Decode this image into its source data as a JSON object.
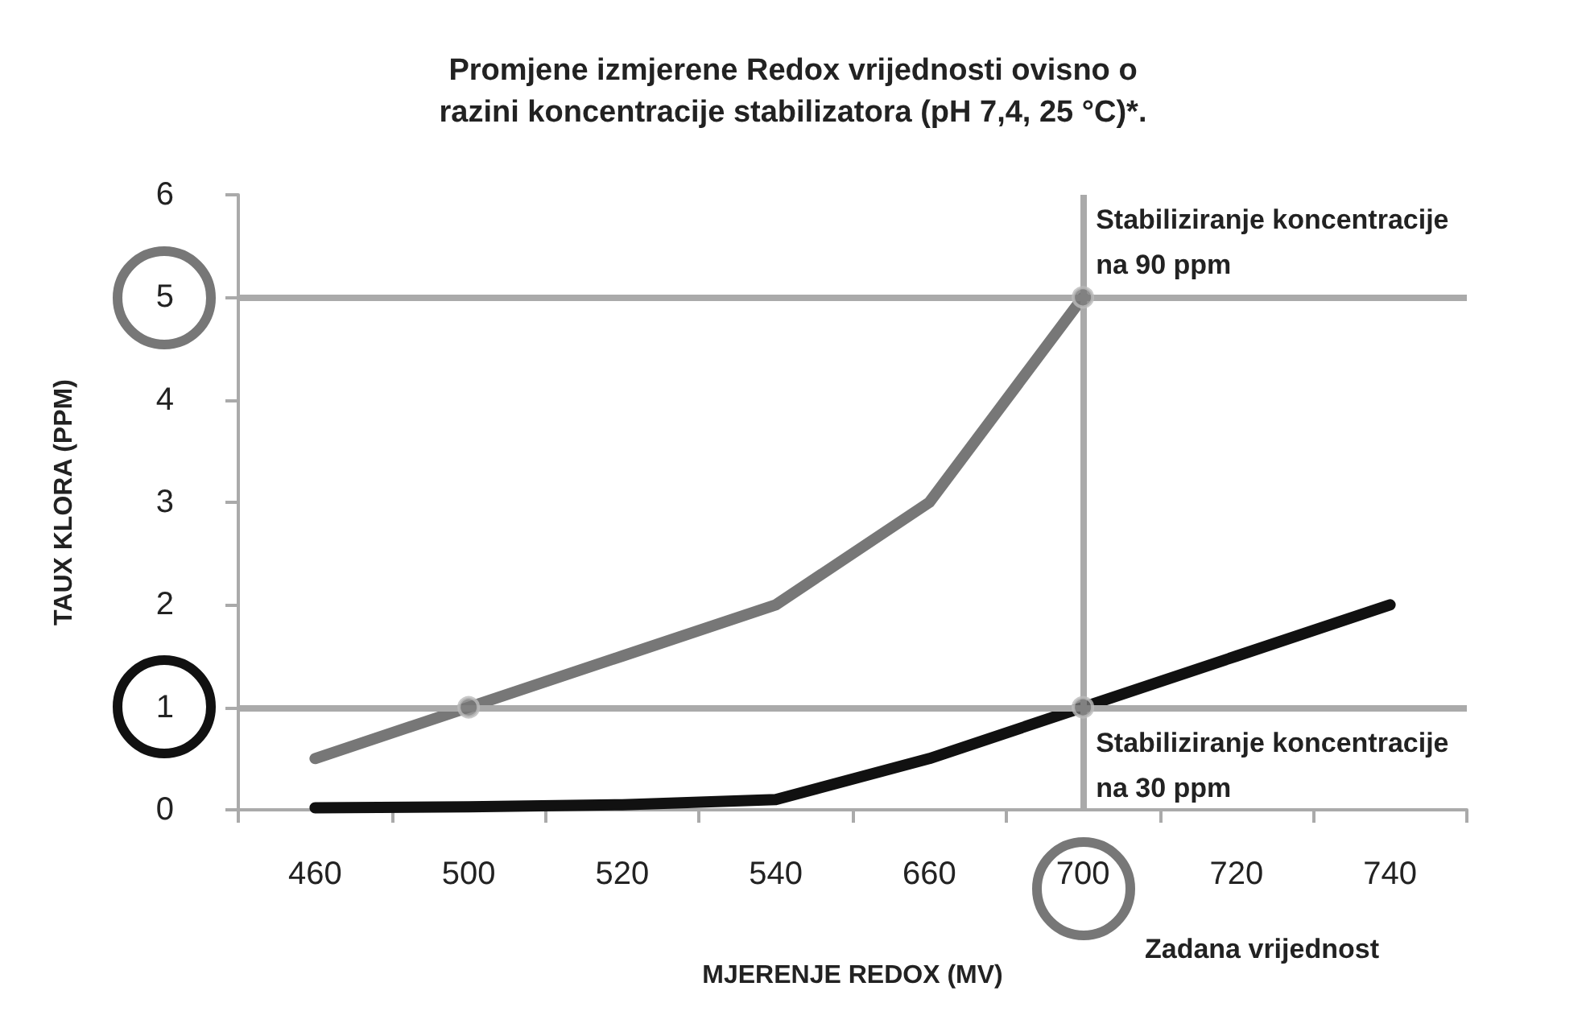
{
  "chart_data": {
    "type": "line",
    "title": "Promjene izmjerene Redox vrijednosti ovisno o\nrazini koncentracije stabilizatora (pH 7,4, 25 °C)*.",
    "xlabel": "MJERENJE REDOX (MV)",
    "ylabel": "TAUX KLORA (PPM)",
    "categories": [
      "460",
      "500",
      "520",
      "540",
      "660",
      "700",
      "720",
      "740"
    ],
    "series": [
      {
        "color": "#777777",
        "values": [
          0.5,
          1,
          1.5,
          2,
          3,
          5,
          null,
          null
        ]
      },
      {
        "color": "#111111",
        "values": [
          0.02,
          0.03,
          0.05,
          0.1,
          0.5,
          1,
          1.5,
          2
        ]
      },
      {
        "type": "scatter",
        "marker": "circle",
        "color": "#777777",
        "x": [
          "500",
          "700",
          "700"
        ],
        "values": [
          1,
          5,
          1
        ]
      }
    ],
    "ylim": [
      0,
      6
    ],
    "yticks": [
      0,
      1,
      2,
      3,
      4,
      5,
      6
    ],
    "grid": false,
    "ref_lines": [
      {
        "axis": "y",
        "value": 5,
        "color": "#aaaaaa"
      },
      {
        "axis": "y",
        "value": 1,
        "color": "#aaaaaa"
      },
      {
        "axis": "x",
        "value": "700",
        "color": "#aaaaaa"
      }
    ],
    "annotations": [
      {
        "text": "Stabiliziranje koncentracije\nna 90 ppm",
        "x": "700",
        "y": 5
      },
      {
        "text": "Stabiliziranje koncentracije\nna 30 ppm",
        "x": "700",
        "y": 1
      },
      "Zadana vrijednost"
    ]
  }
}
